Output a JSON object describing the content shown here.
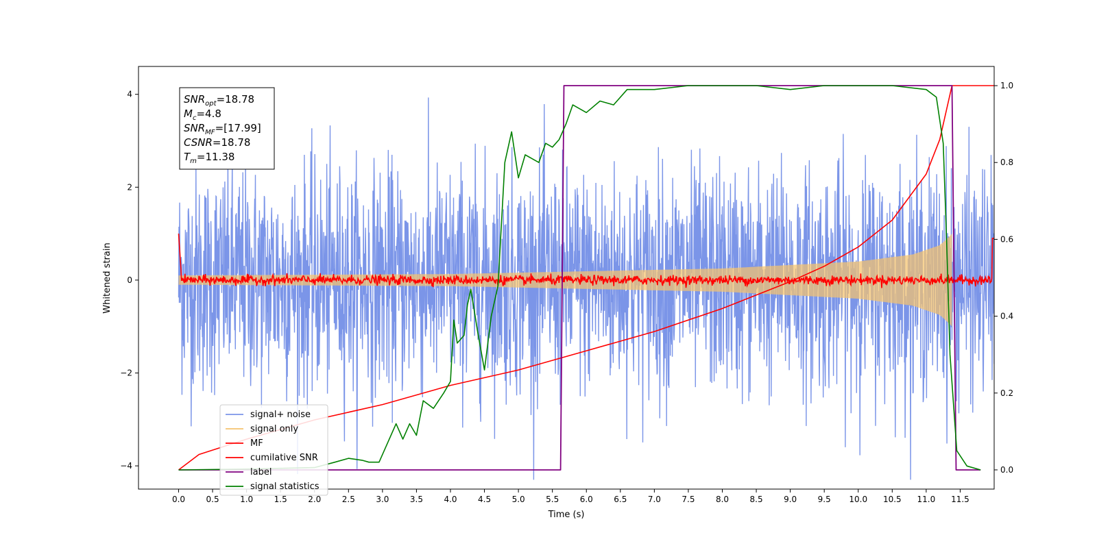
{
  "chart_data": {
    "type": "line",
    "xlabel": "Time (s)",
    "ylabel": "Whitened strain",
    "xlim": [
      -0.59,
      12.0
    ],
    "ylim": [
      -4.5,
      4.6
    ],
    "y2lim": [
      -0.05,
      1.05
    ],
    "x_ticks": [
      "0.0",
      "0.5",
      "1.0",
      "1.5",
      "2.0",
      "2.5",
      "3.0",
      "3.5",
      "4.0",
      "4.5",
      "5.0",
      "5.5",
      "6.0",
      "6.5",
      "7.0",
      "7.5",
      "8.0",
      "8.5",
      "9.0",
      "9.5",
      "10.0",
      "10.5",
      "11.0",
      "11.5"
    ],
    "y_ticks": [
      "4",
      "2",
      "0",
      "−2",
      "−4"
    ],
    "y2_ticks": [
      "1.0",
      "0.8",
      "0.6",
      "0.4",
      "0.2",
      "0.0"
    ],
    "annotation": {
      "lines": [
        {
          "sym": "SNR",
          "sub": "opt",
          "value": "=18.78"
        },
        {
          "sym": "M",
          "sub": "c",
          "value": "=4.8"
        },
        {
          "sym": "SNR",
          "sub": "MF",
          "value": "=[17.99]"
        },
        {
          "sym": "CSNR",
          "sub": "",
          "value": "=18.78"
        },
        {
          "sym": "T",
          "sub": "m",
          "value": "=11.38"
        }
      ]
    },
    "legend_placement": "lower-left",
    "series": [
      {
        "name": "signal+ noise",
        "color": "#7b95e8",
        "axis": "left",
        "noise_std": 1.2,
        "t_range": [
          0.0,
          12.0
        ]
      },
      {
        "name": "signal only",
        "color": "#f5c36e",
        "axis": "left",
        "envelope_amplitude": [
          [
            0.0,
            0.1
          ],
          [
            4.0,
            0.13
          ],
          [
            8.0,
            0.25
          ],
          [
            10.0,
            0.4
          ],
          [
            10.8,
            0.55
          ],
          [
            11.2,
            0.75
          ],
          [
            11.35,
            0.95
          ],
          [
            11.38,
            1.0
          ]
        ]
      },
      {
        "name": "MF",
        "color": "#ff0000",
        "axis": "left",
        "noise_std": 0.05,
        "t_range": [
          0.0,
          12.0
        ]
      },
      {
        "name": "cumilative SNR",
        "color": "#ff0000",
        "axis": "right",
        "points": [
          [
            0.0,
            0.0
          ],
          [
            0.3,
            0.04
          ],
          [
            1.0,
            0.08
          ],
          [
            2.0,
            0.13
          ],
          [
            3.0,
            0.17
          ],
          [
            4.0,
            0.22
          ],
          [
            5.0,
            0.26
          ],
          [
            6.0,
            0.31
          ],
          [
            7.0,
            0.36
          ],
          [
            8.0,
            0.42
          ],
          [
            9.0,
            0.49
          ],
          [
            9.5,
            0.53
          ],
          [
            10.0,
            0.58
          ],
          [
            10.5,
            0.65
          ],
          [
            11.0,
            0.77
          ],
          [
            11.2,
            0.86
          ],
          [
            11.38,
            1.0
          ],
          [
            12.0,
            1.0
          ]
        ]
      },
      {
        "name": "label",
        "color": "#800080",
        "axis": "right",
        "points": [
          [
            0.0,
            0.0
          ],
          [
            5.62,
            0.0
          ],
          [
            5.67,
            1.0
          ],
          [
            11.38,
            1.0
          ],
          [
            11.44,
            0.0
          ],
          [
            11.8,
            0.0
          ]
        ]
      },
      {
        "name": "signal statistics",
        "color": "#008000",
        "axis": "right",
        "points": [
          [
            0.0,
            0.0
          ],
          [
            1.0,
            0.002
          ],
          [
            2.0,
            0.006
          ],
          [
            2.3,
            0.02
          ],
          [
            2.5,
            0.03
          ],
          [
            2.7,
            0.025
          ],
          [
            2.8,
            0.02
          ],
          [
            2.95,
            0.02
          ],
          [
            3.05,
            0.06
          ],
          [
            3.2,
            0.12
          ],
          [
            3.3,
            0.08
          ],
          [
            3.4,
            0.12
          ],
          [
            3.5,
            0.09
          ],
          [
            3.6,
            0.18
          ],
          [
            3.75,
            0.16
          ],
          [
            3.9,
            0.2
          ],
          [
            4.0,
            0.23
          ],
          [
            4.05,
            0.39
          ],
          [
            4.1,
            0.33
          ],
          [
            4.2,
            0.35
          ],
          [
            4.25,
            0.43
          ],
          [
            4.3,
            0.47
          ],
          [
            4.4,
            0.36
          ],
          [
            4.5,
            0.26
          ],
          [
            4.6,
            0.4
          ],
          [
            4.7,
            0.48
          ],
          [
            4.8,
            0.8
          ],
          [
            4.9,
            0.88
          ],
          [
            5.0,
            0.76
          ],
          [
            5.1,
            0.82
          ],
          [
            5.2,
            0.81
          ],
          [
            5.3,
            0.8
          ],
          [
            5.4,
            0.85
          ],
          [
            5.5,
            0.84
          ],
          [
            5.6,
            0.86
          ],
          [
            5.7,
            0.9
          ],
          [
            5.8,
            0.95
          ],
          [
            6.0,
            0.93
          ],
          [
            6.2,
            0.96
          ],
          [
            6.4,
            0.95
          ],
          [
            6.6,
            0.99
          ],
          [
            7.0,
            0.99
          ],
          [
            7.5,
            1.0
          ],
          [
            8.5,
            1.0
          ],
          [
            9.0,
            0.99
          ],
          [
            9.5,
            1.0
          ],
          [
            10.5,
            1.0
          ],
          [
            11.0,
            0.99
          ],
          [
            11.15,
            0.97
          ],
          [
            11.25,
            0.85
          ],
          [
            11.3,
            0.6
          ],
          [
            11.35,
            0.3
          ],
          [
            11.45,
            0.05
          ],
          [
            11.6,
            0.01
          ],
          [
            11.8,
            0.0
          ]
        ]
      }
    ]
  }
}
